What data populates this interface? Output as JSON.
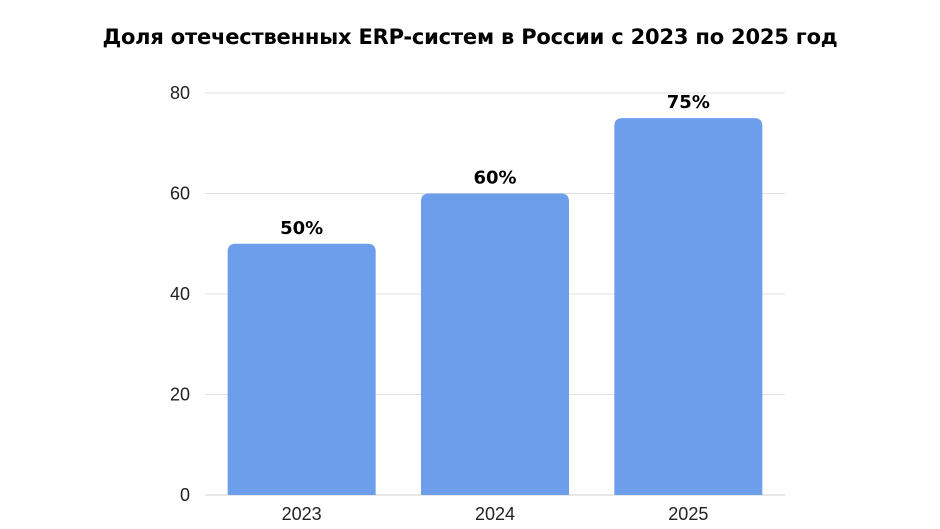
{
  "chart_data": {
    "type": "bar",
    "title": "Доля отечественных ERP-систем в России с 2023 по 2025 год",
    "categories": [
      "2023",
      "2024",
      "2025"
    ],
    "values": [
      50,
      60,
      75
    ],
    "data_labels": [
      "50%",
      "60%",
      "75%"
    ],
    "yticks": [
      "0",
      "20",
      "40",
      "60",
      "80"
    ],
    "ylim": [
      0,
      80
    ],
    "grid": true,
    "legend": "none",
    "bar_color": "#6d9eeb",
    "grid_color": "#e0e0e0",
    "xlabel": "",
    "ylabel": ""
  }
}
